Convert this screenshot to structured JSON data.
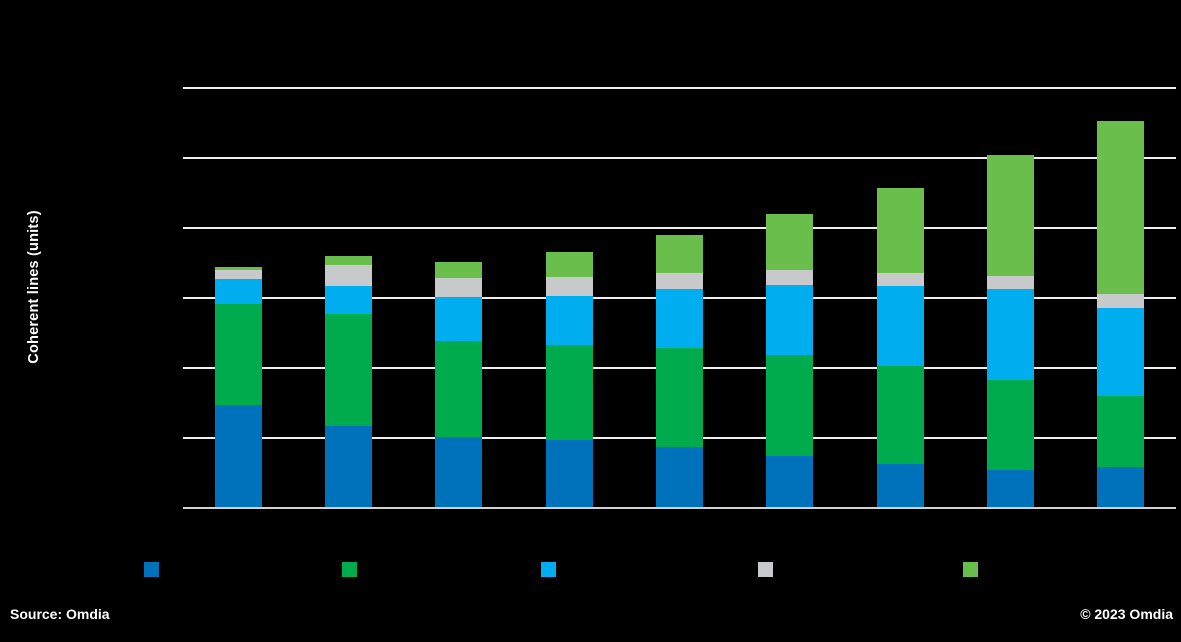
{
  "page": {
    "background_color": "#000000",
    "text_color": "#ffffff"
  },
  "footer": {
    "source": "Source: Omdia",
    "copyright": "© 2023 Omdia"
  },
  "chart_data": {
    "type": "bar",
    "stacked": true,
    "title": "",
    "xlabel": "",
    "ylabel": "Coherent lines (units)",
    "ylim": [
      0,
      60
    ],
    "gridline_step": 10,
    "gridlines": true,
    "grid_color": "#efefef",
    "legend_position": "bottom",
    "axis_tick_labels_visible": false,
    "x_tick_labels_visible": false,
    "categories": [
      "",
      "",
      "",
      "",
      "",
      "",
      "",
      "",
      ""
    ],
    "series": [
      {
        "name": "",
        "swatch": "dark-blue",
        "color": "#0072BC",
        "values": [
          14.6,
          11.6,
          10.0,
          9.6,
          8.6,
          7.3,
          6.1,
          5.3,
          5.7
        ]
      },
      {
        "name": "",
        "swatch": "green",
        "color": "#00AB4E",
        "values": [
          14.4,
          16.0,
          13.7,
          13.6,
          14.1,
          14.4,
          14.1,
          12.9,
          10.1
        ]
      },
      {
        "name": "",
        "swatch": "cyan",
        "color": "#00AEEF",
        "values": [
          3.6,
          4.0,
          6.3,
          6.9,
          8.4,
          10.0,
          11.4,
          12.9,
          12.7
        ]
      },
      {
        "name": "",
        "swatch": "gray",
        "color": "#C8C9CA",
        "values": [
          1.3,
          3.0,
          2.7,
          2.7,
          2.4,
          2.1,
          1.9,
          1.9,
          2.0
        ]
      },
      {
        "name": "",
        "swatch": "light-green",
        "color": "#6ABE4B",
        "values": [
          0.4,
          1.3,
          2.3,
          3.7,
          5.4,
          8.0,
          12.1,
          17.3,
          24.6
        ]
      }
    ]
  }
}
